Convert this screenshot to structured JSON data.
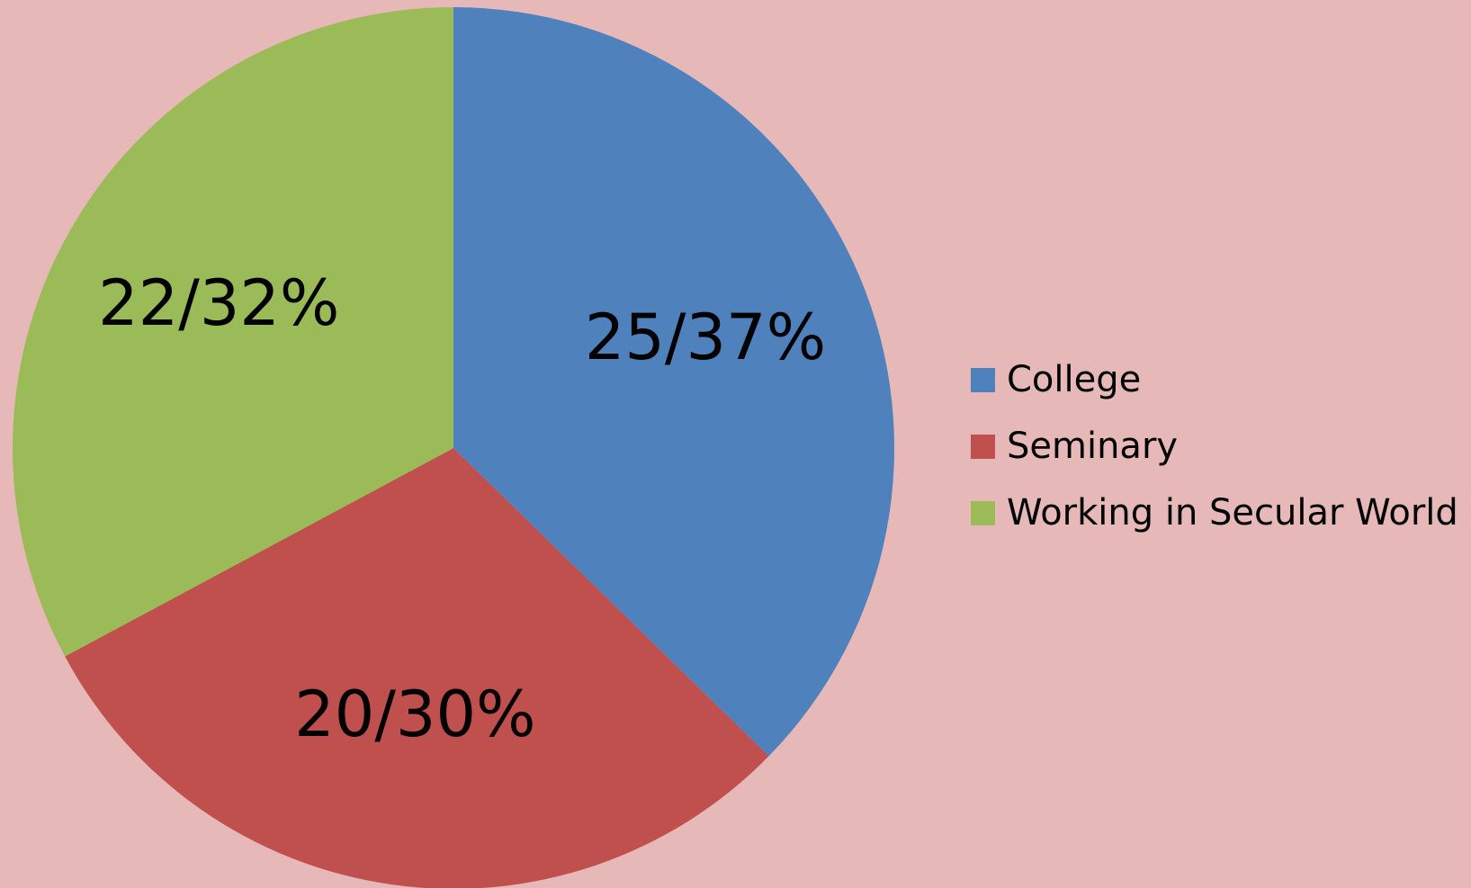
{
  "chart_data": {
    "type": "pie",
    "categories": [
      "College",
      "Seminary",
      "Working in Secular World"
    ],
    "values": [
      25,
      20,
      22
    ],
    "value_labels": [
      "25/37%",
      "20/30%",
      "22/32%"
    ],
    "colors": [
      "#4f81bd",
      "#c0504d",
      "#9bbb59"
    ],
    "legend": "right"
  }
}
